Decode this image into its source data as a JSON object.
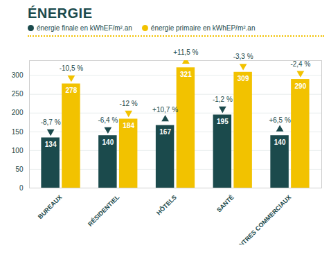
{
  "chart_data": {
    "type": "bar",
    "title": "ÉNERGIE",
    "categories": [
      "BUREAUX",
      "RÉSIDENTIEL",
      "HÔTELS",
      "SANTÉ",
      "CENTRES COMMERCIAUX"
    ],
    "series": [
      {
        "name": "énergie finale en kWhEF/m².an",
        "color": "#1b4a4c",
        "values": [
          134,
          140,
          167,
          195,
          140
        ],
        "changes": [
          -8.7,
          -6.4,
          10.7,
          -1.2,
          6.5
        ],
        "change_labels": [
          "-8,7 %",
          "-6,4 %",
          "+10,7 %",
          "-1,2 %",
          "+6,5 %"
        ]
      },
      {
        "name": "énergie primaire en kWhEP/m².an",
        "color": "#f2c200",
        "values": [
          278,
          184,
          321,
          309,
          290
        ],
        "changes": [
          -10.5,
          -12,
          11.5,
          -3.3,
          -2.4
        ],
        "change_labels": [
          "-10,5 %",
          "-12 %",
          "+11,5 %",
          "-3,3 %",
          "-2,4 %"
        ]
      }
    ],
    "ylim": [
      0,
      340
    ],
    "yticks": [
      0,
      50,
      100,
      150,
      200,
      250,
      300
    ],
    "grid": true,
    "data_labels": true,
    "legend": "top"
  }
}
